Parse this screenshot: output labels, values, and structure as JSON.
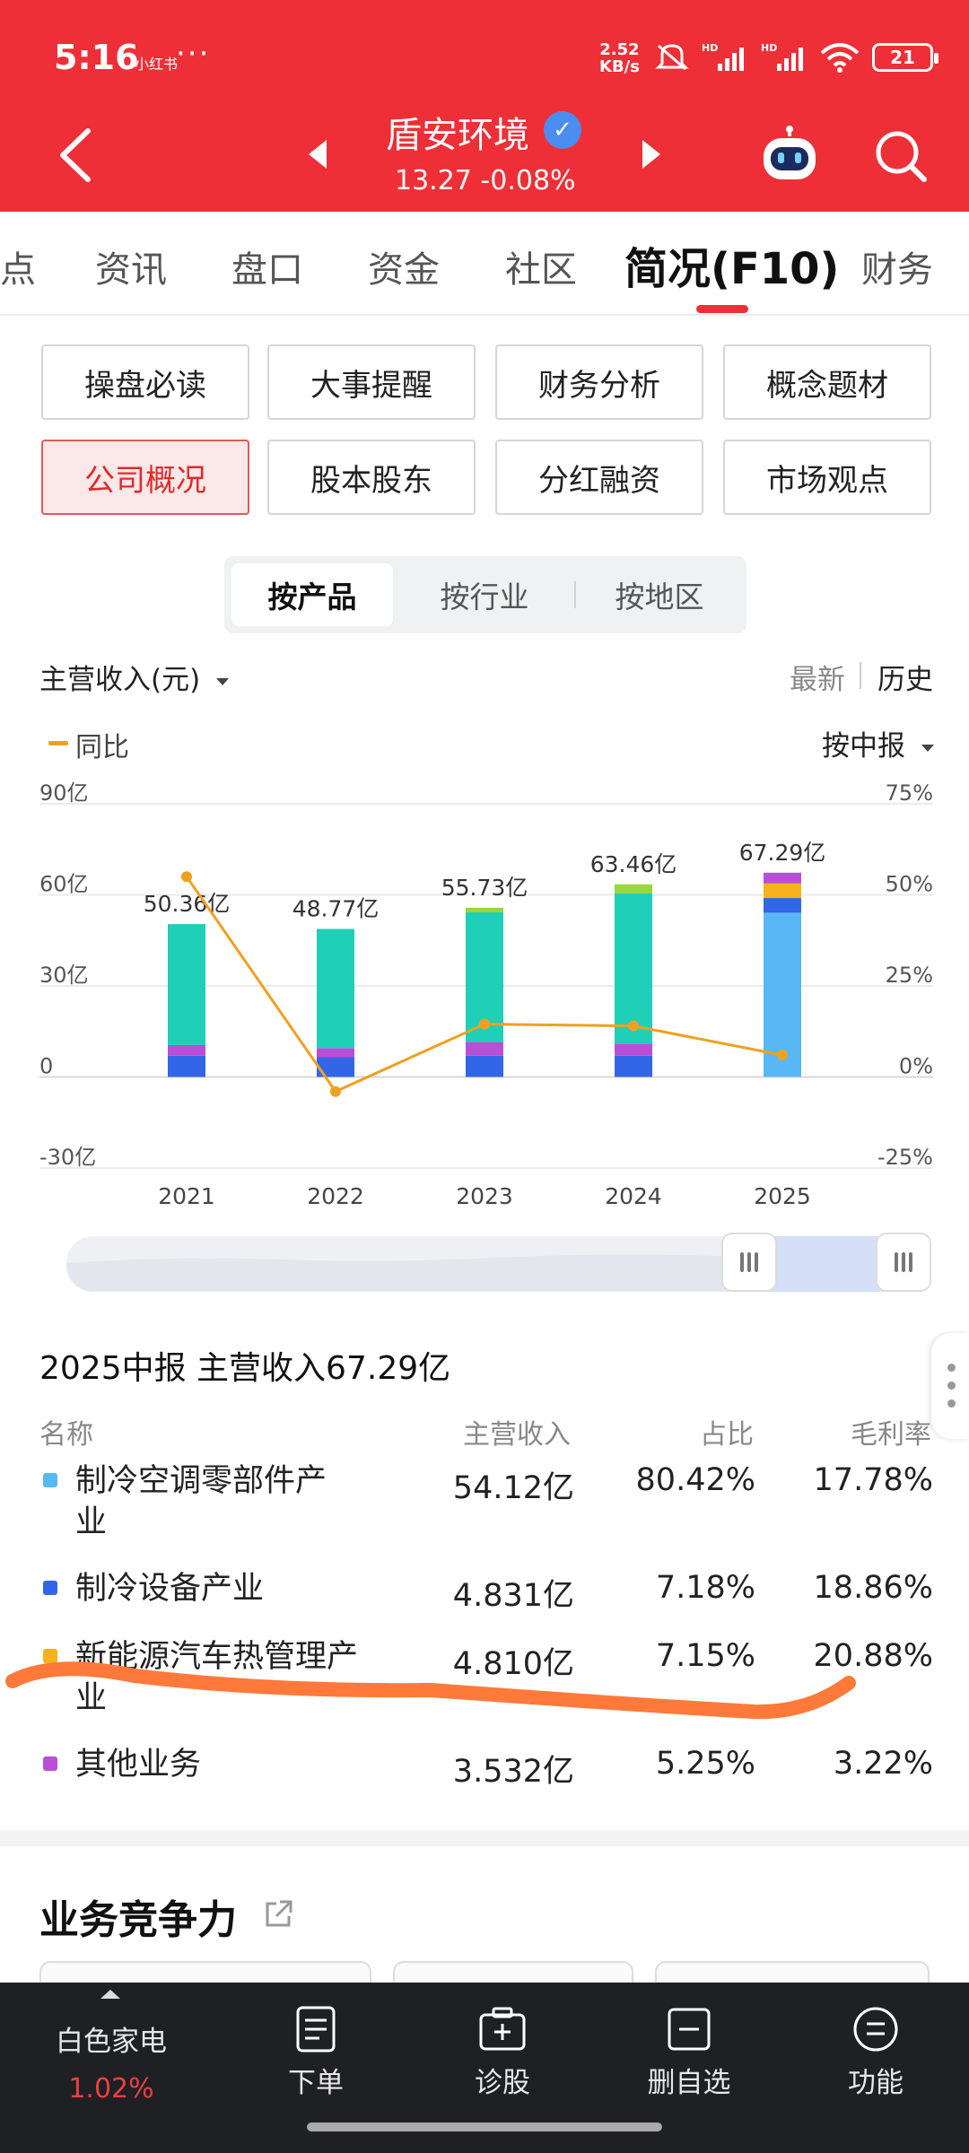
{
  "status": {
    "time": "5:16",
    "carrier": "小红书",
    "more": "···",
    "speed_value": "2.52",
    "speed_unit": "KB/s",
    "battery": "21"
  },
  "header": {
    "stock_name": "盾安环境",
    "verify_mark": "✓",
    "price": "13.27 -0.08%"
  },
  "tabs": [
    {
      "label": "点"
    },
    {
      "label": "资讯"
    },
    {
      "label": "盘口"
    },
    {
      "label": "资金"
    },
    {
      "label": "社区"
    },
    {
      "label": "简况(F10)"
    },
    {
      "label": "财务"
    }
  ],
  "grid_buttons": [
    {
      "label": "操盘必读"
    },
    {
      "label": "大事提醒"
    },
    {
      "label": "财务分析"
    },
    {
      "label": "概念题材"
    },
    {
      "label": "公司概况"
    },
    {
      "label": "股本股东"
    },
    {
      "label": "分红融资"
    },
    {
      "label": "市场观点"
    }
  ],
  "segment": {
    "items": [
      {
        "label": "按产品"
      },
      {
        "label": "按行业"
      },
      {
        "label": "按地区"
      }
    ]
  },
  "controls": {
    "metric_label": "主营收入(元)",
    "latest_label": "最新",
    "history_label": "历史",
    "legend_label": "同比",
    "period_label": "按中报"
  },
  "colors": {
    "brand_red": "#ee2f37",
    "teal": "#1fcfb8",
    "blue": "#3366e6",
    "purple": "#b94fd6",
    "yellow_green": "#9ad63c",
    "light_blue": "#58b8f5",
    "orange": "#f5b21c",
    "yoy_line": "#f0a020"
  },
  "chart_data": {
    "type": "bar",
    "categories": [
      "2021",
      "2022",
      "2023",
      "2024",
      "2025"
    ],
    "totals_labels": [
      "50.36亿",
      "48.77亿",
      "55.73亿",
      "63.46亿",
      "67.29亿"
    ],
    "totals": [
      50.36,
      48.77,
      55.73,
      63.46,
      67.29
    ],
    "ylim": [
      -30,
      90
    ],
    "y_ticks": [
      "90亿",
      "60亿",
      "30亿",
      "0",
      "-30亿"
    ],
    "y2lim": [
      -25,
      75
    ],
    "y2_ticks": [
      "75%",
      "50%",
      "25%",
      "0%",
      "-25%"
    ],
    "stacks": [
      [
        {
          "value": 7,
          "color": "#3366e6"
        },
        {
          "value": 3.5,
          "color": "#b94fd6"
        },
        {
          "value": 39.86,
          "color": "#1fcfb8"
        }
      ],
      [
        {
          "value": 6.5,
          "color": "#3366e6"
        },
        {
          "value": 3,
          "color": "#b94fd6"
        },
        {
          "value": 39.27,
          "color": "#1fcfb8"
        }
      ],
      [
        {
          "value": 7,
          "color": "#3366e6"
        },
        {
          "value": 4.5,
          "color": "#b94fd6"
        },
        {
          "value": 42.73,
          "color": "#1fcfb8"
        },
        {
          "value": 1.5,
          "color": "#9ad63c"
        }
      ],
      [
        {
          "value": 7,
          "color": "#3366e6"
        },
        {
          "value": 4,
          "color": "#b94fd6"
        },
        {
          "value": 49.46,
          "color": "#1fcfb8"
        },
        {
          "value": 3,
          "color": "#9ad63c"
        }
      ],
      [
        {
          "value": 54.12,
          "color": "#58b8f5"
        },
        {
          "value": 4.831,
          "color": "#3366e6"
        },
        {
          "value": 4.81,
          "color": "#f5b21c"
        },
        {
          "value": 3.532,
          "color": "#b94fd6"
        }
      ]
    ],
    "series": [
      {
        "name": "同比",
        "type": "line",
        "values": [
          55,
          -4,
          14.5,
          14,
          6
        ]
      }
    ]
  },
  "table": {
    "title": "2025中报 主营收入67.29亿",
    "headers": [
      "名称",
      "主营收入",
      "占比",
      "毛利率"
    ],
    "rows": [
      {
        "name": "制冷空调零部件产业",
        "revenue": "54.12亿",
        "share": "80.42%",
        "margin": "17.78%",
        "color": "#58b8f5"
      },
      {
        "name": "制冷设备产业",
        "revenue": "4.831亿",
        "share": "7.18%",
        "margin": "18.86%",
        "color": "#3366e6"
      },
      {
        "name": "新能源汽车热管理产业",
        "revenue": "4.810亿",
        "share": "7.15%",
        "margin": "20.88%",
        "color": "#f5b21c"
      },
      {
        "name": "其他业务",
        "revenue": "3.532亿",
        "share": "5.25%",
        "margin": "3.22%",
        "color": "#b94fd6"
      }
    ]
  },
  "section": {
    "title": "业务竞争力"
  },
  "bottom_bar": {
    "index_name": "白色家电",
    "index_change": "1.02%",
    "items": [
      {
        "label": "下单"
      },
      {
        "label": "诊股"
      },
      {
        "label": "删自选"
      },
      {
        "label": "功能"
      }
    ]
  }
}
